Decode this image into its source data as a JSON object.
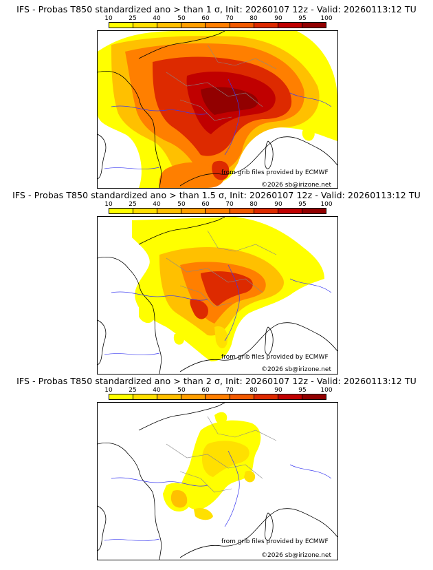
{
  "colorbar": {
    "ticks": [
      "10",
      "25",
      "40",
      "50",
      "60",
      "70",
      "80",
      "90",
      "95",
      "100"
    ],
    "colors": [
      "#ffff00",
      "#ffe000",
      "#ffc000",
      "#ff9f00",
      "#ff7f00",
      "#f25a00",
      "#dd2a00",
      "#c00000",
      "#920000"
    ]
  },
  "panels": [
    {
      "title": "IFS - Probas T850  standardized ano > than 1 σ, Init: 20260107 12z - Valid: 20260113:12 TU",
      "credit_source": "from grib files provided by ECMWF",
      "credit_copyright": "©2026 sb@irizone.net"
    },
    {
      "title": "IFS - Probas T850  standardized ano > than 1.5 σ, Init: 20260107 12z - Valid: 20260113:12 TU",
      "credit_source": "from grib files provided by ECMWF",
      "credit_copyright": "©2026 sb@irizone.net"
    },
    {
      "title": "IFS - Probas T850  standardized ano > than 2 σ, Init: 20260107 12z - Valid: 20260113:12 TU",
      "credit_source": "from grib files provided by ECMWF",
      "credit_copyright": "©2026 sb@irizone.net"
    }
  ]
}
